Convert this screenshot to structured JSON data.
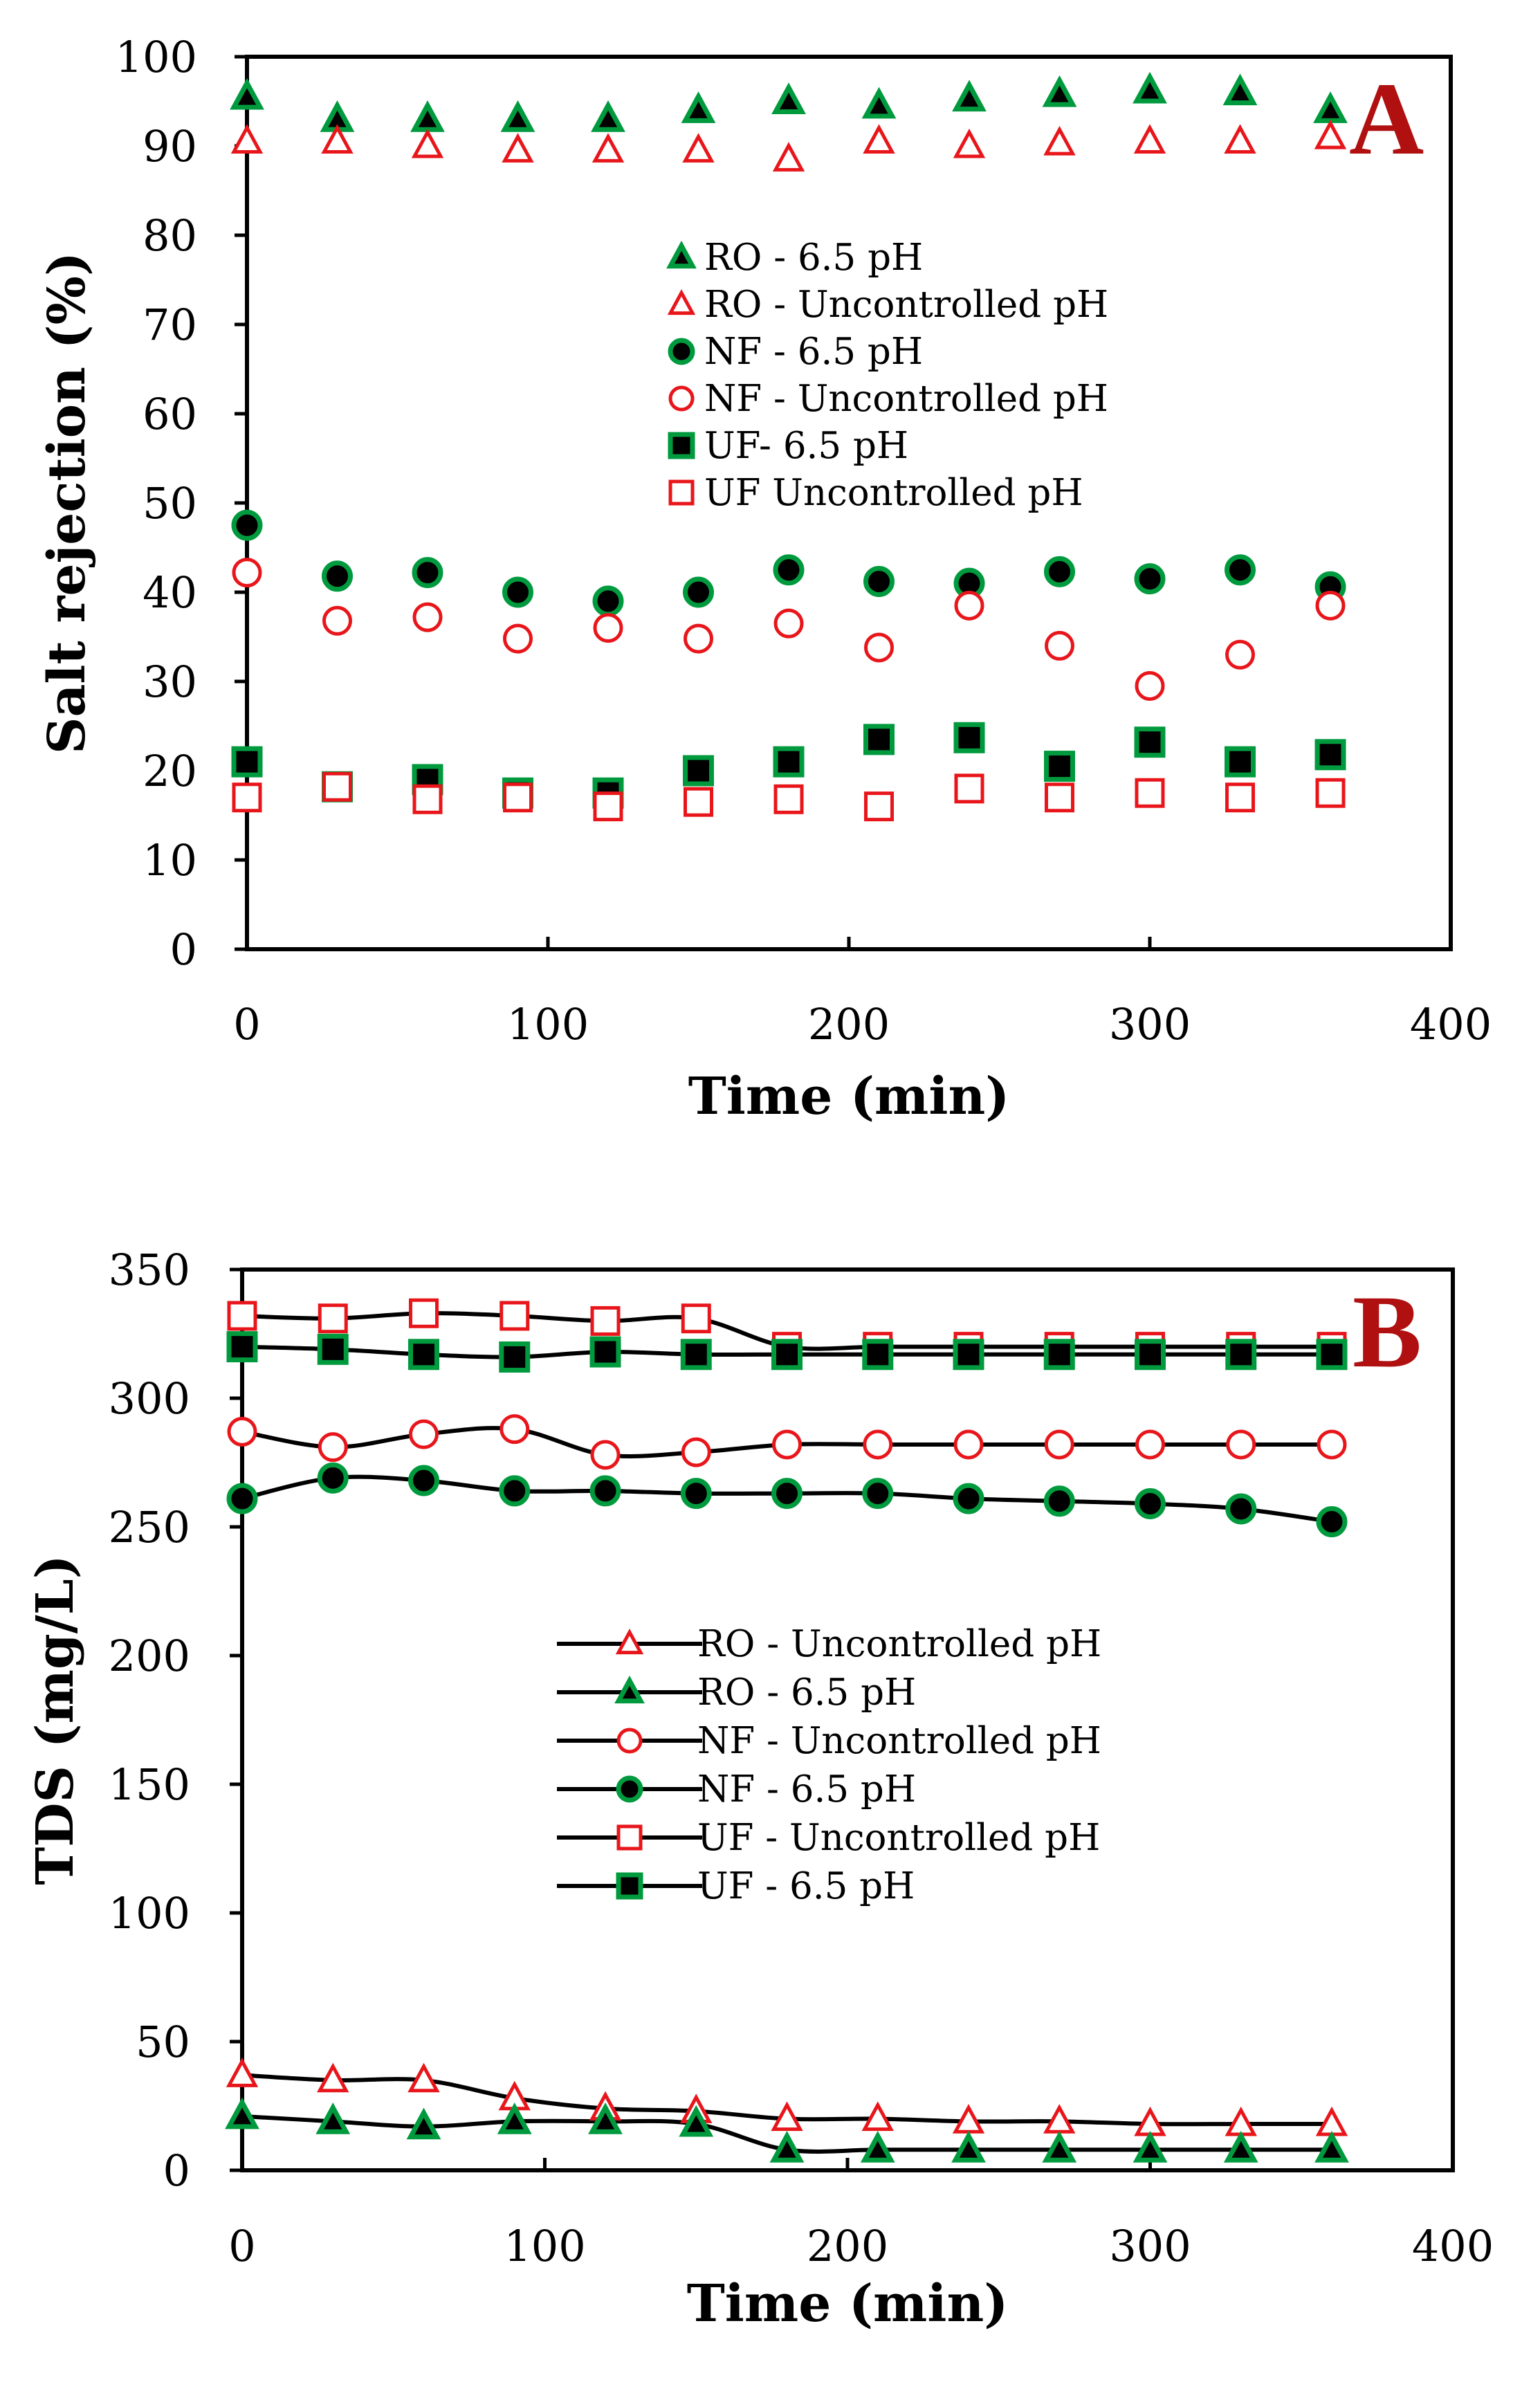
{
  "colors": {
    "green": "#009a3e",
    "red": "#e8161b",
    "black": "#000000",
    "panel_letter": "#b01010"
  },
  "chart_data": [
    {
      "type": "scatter",
      "panel": "A",
      "title": "",
      "xlabel": "Time (min)",
      "ylabel": "Salt rejection (%)",
      "xlim": [
        0,
        400
      ],
      "ylim": [
        0,
        100
      ],
      "xticks": [
        0,
        100,
        200,
        300,
        400
      ],
      "yticks": [
        0,
        10,
        20,
        30,
        40,
        50,
        60,
        70,
        80,
        90,
        100
      ],
      "grid": false,
      "legend_position": "upper-middle",
      "x": [
        0,
        30,
        60,
        90,
        120,
        150,
        180,
        210,
        240,
        270,
        300,
        330,
        360
      ],
      "series": [
        {
          "name": "RO - 6.5 pH",
          "marker": "triangle-filled",
          "values": [
            95.5,
            93,
            93,
            93,
            93,
            94,
            95,
            94.5,
            95.3,
            95.8,
            96.2,
            96,
            94
          ]
        },
        {
          "name": "RO - Uncontrolled pH",
          "marker": "triangle-open",
          "values": [
            90.5,
            90.5,
            90,
            89.5,
            89.5,
            89.5,
            88.5,
            90.5,
            90,
            90.3,
            90.5,
            90.5,
            91
          ]
        },
        {
          "name": "NF - 6.5 pH",
          "marker": "circle-filled",
          "values": [
            47.5,
            41.8,
            42.2,
            40,
            39,
            40,
            42.5,
            41.2,
            41,
            42.3,
            41.5,
            42.5,
            40.6
          ]
        },
        {
          "name": "NF - Uncontrolled pH",
          "marker": "circle-open",
          "values": [
            42.2,
            36.8,
            37.2,
            34.8,
            36,
            34.8,
            36.5,
            33.8,
            38.5,
            34,
            29.5,
            33,
            38.5
          ]
        },
        {
          "name": "UF- 6.5 pH",
          "marker": "square-filled",
          "values": [
            21,
            18.2,
            19,
            17.5,
            17.5,
            20,
            21,
            23.5,
            23.7,
            20.5,
            23.2,
            21,
            21.8
          ]
        },
        {
          "name": "UF Uncontrolled pH",
          "marker": "square-open",
          "values": [
            17,
            18.2,
            16.8,
            17,
            16,
            16.5,
            16.8,
            16,
            18,
            17,
            17.5,
            17,
            17.5
          ]
        }
      ]
    },
    {
      "type": "line",
      "panel": "B",
      "title": "",
      "xlabel": "Time (min)",
      "ylabel": "TDS (mg/L)",
      "xlim": [
        0,
        400
      ],
      "ylim": [
        0,
        350
      ],
      "xticks": [
        0,
        100,
        200,
        300,
        400
      ],
      "yticks": [
        0,
        50,
        100,
        150,
        200,
        250,
        300,
        350
      ],
      "grid": false,
      "legend_position": "middle-center",
      "x": [
        0,
        30,
        60,
        90,
        120,
        150,
        180,
        210,
        240,
        270,
        300,
        330,
        360
      ],
      "series": [
        {
          "name": "RO - Uncontrolled pH",
          "marker": "triangle-open",
          "values": [
            37,
            35,
            35,
            28,
            24,
            23,
            20,
            20,
            19,
            19,
            18,
            18,
            18
          ]
        },
        {
          "name": "RO - 6.5 pH",
          "marker": "triangle-filled",
          "values": [
            21,
            19,
            17,
            19,
            19,
            18,
            8,
            8,
            8,
            8,
            8,
            8,
            8
          ]
        },
        {
          "name": "NF - Uncontrolled pH",
          "marker": "circle-open",
          "values": [
            287,
            281,
            286,
            288,
            278,
            279,
            282,
            282,
            282,
            282,
            282,
            282,
            282
          ]
        },
        {
          "name": "NF - 6.5 pH",
          "marker": "circle-filled",
          "values": [
            261,
            269,
            268,
            264,
            264,
            263,
            263,
            263,
            261,
            260,
            259,
            257,
            252
          ]
        },
        {
          "name": "UF - Uncontrolled pH",
          "marker": "square-open",
          "values": [
            332,
            331,
            333,
            332,
            330,
            331,
            320,
            320,
            320,
            320,
            320,
            320,
            320
          ]
        },
        {
          "name": "UF - 6.5 pH",
          "marker": "square-filled",
          "values": [
            320,
            319,
            317,
            316,
            318,
            317,
            317,
            317,
            317,
            317,
            317,
            317,
            317
          ]
        }
      ]
    }
  ]
}
